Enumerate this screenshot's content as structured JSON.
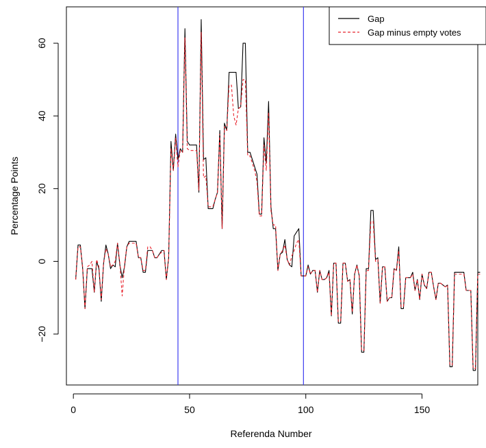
{
  "chart_data": {
    "type": "line",
    "title": "",
    "xlabel": "Referenda Number",
    "ylabel": "Percentage Points",
    "xlim": [
      -3,
      174
    ],
    "ylim": [
      -34,
      70
    ],
    "x_ticks": [
      0,
      50,
      100,
      150
    ],
    "y_ticks": [
      -20,
      0,
      20,
      40,
      60
    ],
    "x_tick_labels": [
      "0",
      "50",
      "100",
      "150"
    ],
    "y_tick_labels": [
      "−20",
      "0",
      "20",
      "40",
      "60"
    ],
    "grid": false,
    "legend_position": "top-right",
    "vlines": [
      {
        "x": 45,
        "color": "#3b3bf0"
      },
      {
        "x": 99,
        "color": "#3b3bf0"
      }
    ],
    "series": [
      {
        "name": "Gap",
        "color": "#000000",
        "style": "solid",
        "values": [
          -5,
          4.5,
          4.5,
          -2,
          -13,
          -2,
          -2,
          -2,
          -8.5,
          0,
          -2,
          -11,
          -0.5,
          4.5,
          2,
          -2,
          -1,
          -1.5,
          5,
          -1,
          -4.5,
          -1.5,
          4,
          5.5,
          5.5,
          5.5,
          5.5,
          1,
          1,
          -3,
          -3,
          3,
          3,
          3,
          1,
          1,
          2,
          3,
          3,
          -5,
          1,
          33,
          25,
          35,
          28,
          31,
          30,
          64,
          33,
          32,
          32,
          32,
          32,
          19,
          66.5,
          28,
          28.5,
          14.5,
          14.5,
          14.5,
          17,
          19,
          36,
          9,
          38,
          36,
          52,
          52,
          52,
          52,
          42,
          42.5,
          60,
          60,
          30,
          30,
          28,
          26,
          24,
          13,
          13,
          34,
          27,
          44,
          15,
          9,
          9,
          -2.5,
          2,
          2.5,
          6,
          0.5,
          -1,
          -1.5,
          7,
          8,
          9,
          -4,
          -4,
          -4,
          -1,
          -3.5,
          -2.5,
          -2.5,
          -8.5,
          -2.5,
          -5,
          -5,
          -4.5,
          -2.5,
          -15,
          -0.5,
          -0.5,
          -17,
          -17,
          -0.5,
          -0.5,
          -5.5,
          -5,
          -14.5,
          -3.5,
          -1,
          -4,
          -25,
          -25,
          -2,
          -2,
          14,
          14,
          0.5,
          1,
          -11.5,
          -1.5,
          -1.5,
          -11,
          -10,
          -10,
          -2,
          -2.5,
          4,
          -13,
          -13,
          -4.5,
          -4.5,
          -4.5,
          -3,
          -8,
          -5,
          -10.5,
          -3.5,
          -6.5,
          -7.5,
          -3,
          -3,
          -7,
          -10.5,
          -6,
          -6,
          -6.5,
          -7,
          -6.5,
          -29,
          -29,
          -3,
          -3,
          -3,
          -3,
          -3,
          -8,
          -8,
          -8,
          -30,
          -30,
          -3,
          -3
        ]
      },
      {
        "name": "Gap minus empty votes",
        "color": "#e8202a",
        "style": "dashed",
        "values": [
          -5,
          4,
          4,
          -1.5,
          -13,
          -1.5,
          -1,
          0,
          -8.5,
          0.5,
          -1.5,
          -10.5,
          -0.5,
          3.5,
          2,
          -1.5,
          -1,
          0,
          5,
          -0.5,
          -9.5,
          -1,
          4,
          5,
          5,
          5,
          5,
          1,
          1,
          -2.5,
          -2.5,
          4,
          4,
          3,
          1,
          1,
          2,
          2.5,
          3,
          -5,
          1,
          31,
          25,
          34,
          26,
          30.5,
          30,
          61.5,
          31,
          30.5,
          30.5,
          30.5,
          30.5,
          19.5,
          63,
          23,
          23.5,
          15,
          15,
          15,
          17,
          19,
          35,
          9,
          37,
          36,
          48.5,
          48.5,
          40,
          37.5,
          42,
          42.5,
          50,
          50,
          29,
          29,
          27,
          25,
          22,
          12.5,
          12.5,
          32,
          25,
          41,
          14,
          10,
          10,
          -2.5,
          2,
          3,
          4.5,
          0.5,
          -1,
          1.5,
          3,
          5,
          6,
          -4,
          -4,
          -4,
          -1.5,
          -3.5,
          -2.5,
          -2.5,
          -8.5,
          -2.5,
          -5,
          -5,
          -4.5,
          -3,
          -15,
          -0.5,
          -0.5,
          -16.5,
          -16.5,
          -0.5,
          -0.5,
          -5.5,
          -5,
          -14,
          -3.5,
          -1,
          -4,
          -24.5,
          -24.5,
          -2.5,
          -2.5,
          11,
          11,
          0,
          0.5,
          -11.5,
          -1.5,
          -1.5,
          -11,
          -10,
          -10,
          -2,
          -2.5,
          3,
          -12.5,
          -12.5,
          -4.5,
          -4.5,
          -4.5,
          -3.5,
          -8,
          -5,
          -10.5,
          -3.5,
          -6.5,
          -7.5,
          -3,
          -3,
          -7,
          -10.5,
          -6,
          -6,
          -6.5,
          -7,
          -6.5,
          -28.5,
          -28.5,
          -3.5,
          -3.5,
          -3.5,
          -3.5,
          -3.5,
          -8,
          -8,
          -8,
          -29.5,
          -29.5,
          -3.5,
          -3.5
        ]
      }
    ]
  }
}
